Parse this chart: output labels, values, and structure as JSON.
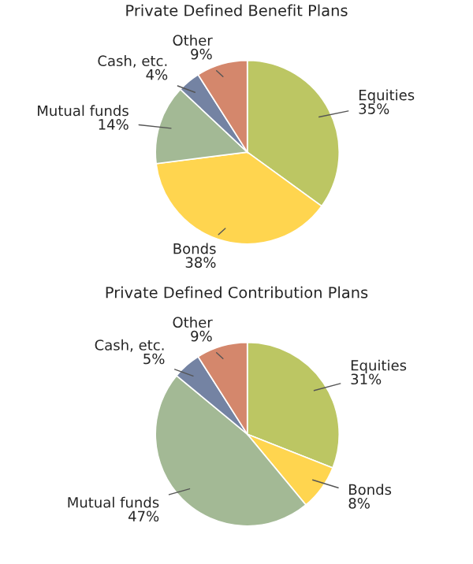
{
  "chart_data": [
    {
      "type": "pie",
      "title": "Private Defined Benefit Plans",
      "categories": [
        "Equities",
        "Bonds",
        "Mutual funds",
        "Cash, etc.",
        "Other"
      ],
      "values": [
        35,
        38,
        14,
        4,
        9
      ],
      "value_labels": [
        "35%",
        "38%",
        "14%",
        "4%",
        "9%"
      ],
      "colors": [
        "#bcc663",
        "#ffd54f",
        "#a3b995",
        "#7483a3",
        "#d4876c"
      ]
    },
    {
      "type": "pie",
      "title": "Private Defined Contribution Plans",
      "categories": [
        "Equities",
        "Bonds",
        "Mutual funds",
        "Cash, etc.",
        "Other"
      ],
      "values": [
        31,
        8,
        47,
        5,
        9
      ],
      "value_labels": [
        "31%",
        "8%",
        "47%",
        "5%",
        "9%"
      ],
      "colors": [
        "#bcc663",
        "#ffd54f",
        "#a3b995",
        "#7483a3",
        "#d4876c"
      ]
    }
  ]
}
